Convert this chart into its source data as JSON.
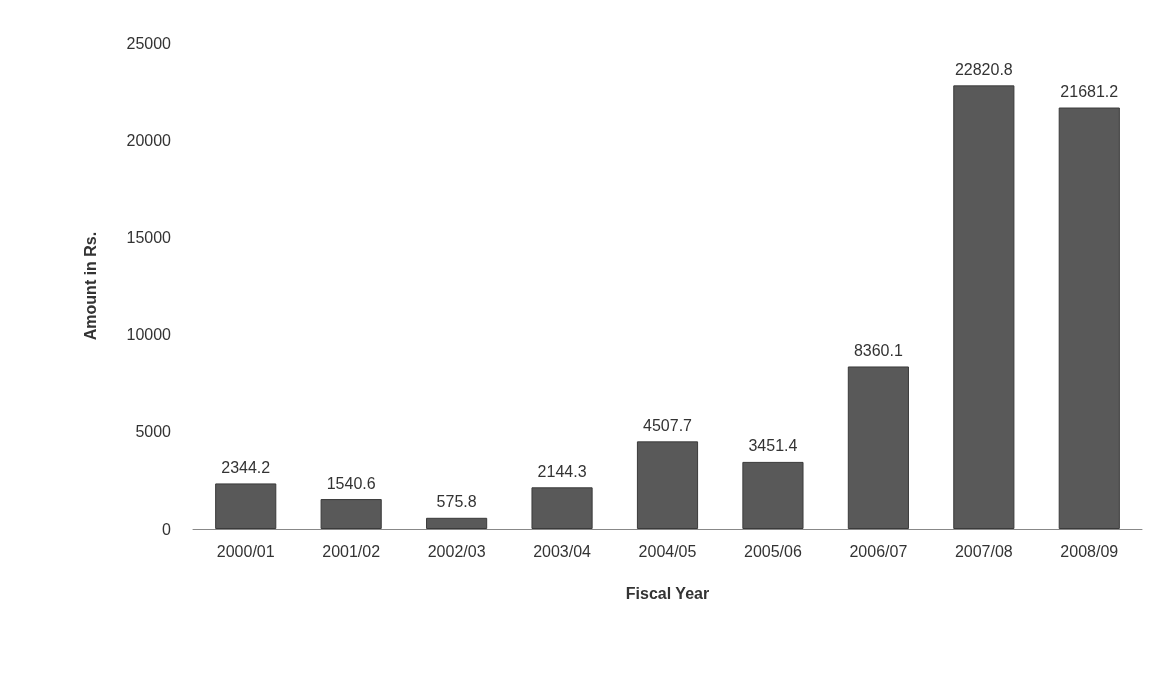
{
  "chart_data": {
    "type": "bar",
    "xlabel": "Fiscal Year",
    "ylabel": "Amount in Rs.",
    "categories": [
      "2000/01",
      "2001/02",
      "2002/03",
      "2003/04",
      "2004/05",
      "2005/06",
      "2006/07",
      "2007/08",
      "2008/09"
    ],
    "values": [
      2344.2,
      1540.6,
      575.8,
      2144.3,
      4507.7,
      3451.4,
      8360.1,
      22820.8,
      21681.2
    ],
    "color": "#595959",
    "ylim": [
      0,
      25000
    ],
    "yticks": [
      0,
      5000,
      10000,
      15000,
      20000,
      25000
    ],
    "grid": false,
    "data_labels": true
  }
}
